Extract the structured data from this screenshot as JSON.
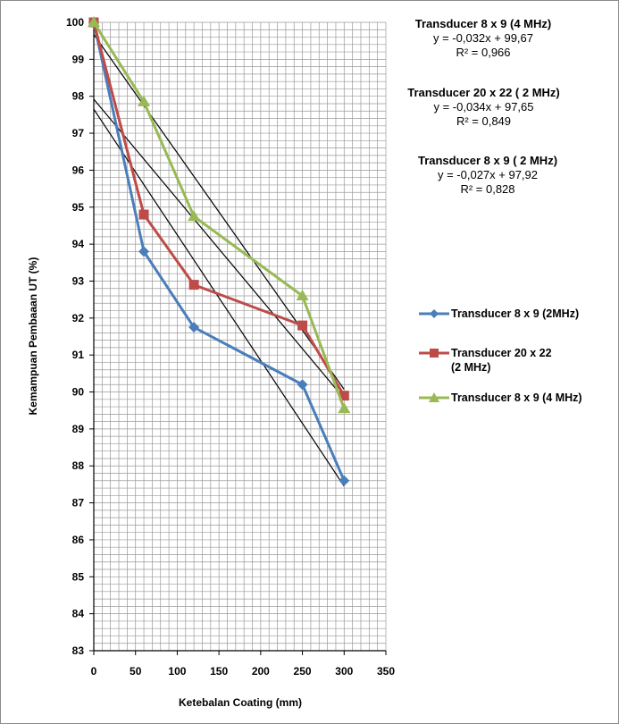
{
  "chart_data": {
    "type": "line",
    "title": "",
    "xlabel": "Ketebalan Coating (mm)",
    "ylabel": "Kemampuan Pembaaan UT (%)",
    "xlim": [
      0,
      350
    ],
    "ylim": [
      83,
      100
    ],
    "x_ticks": [
      "0",
      "50",
      "100",
      "150",
      "200",
      "250",
      "300",
      "350"
    ],
    "y_ticks": [
      "83",
      "84",
      "85",
      "86",
      "87",
      "88",
      "89",
      "90",
      "91",
      "92",
      "93",
      "94",
      "95",
      "96",
      "97",
      "98",
      "99",
      "100"
    ],
    "x_minor_step": 10,
    "y_minor_step": 0.2,
    "grid": true,
    "legend_position": "right",
    "series": [
      {
        "name": "Transducer 8 x 9 (2MHz)",
        "color": "#4a7ebb",
        "marker": "diamond",
        "x": [
          0,
          60,
          120,
          250,
          300
        ],
        "y": [
          100,
          93.8,
          91.75,
          90.2,
          87.6
        ]
      },
      {
        "name": "Transducer 20 x 22 (2 MHz)",
        "color": "#be4b48",
        "marker": "square",
        "x": [
          0,
          60,
          120,
          250,
          300
        ],
        "y": [
          100,
          94.8,
          92.9,
          91.8,
          89.9
        ]
      },
      {
        "name": "Transducer 8 x 9 (4 MHz)",
        "color": "#98b954",
        "marker": "triangle",
        "x": [
          0,
          60,
          120,
          250,
          300
        ],
        "y": [
          100,
          97.85,
          94.75,
          92.6,
          89.55
        ]
      }
    ],
    "trendlines": [
      {
        "color": "#000000",
        "slope": -0.032,
        "intercept": 99.67,
        "x_range": [
          0,
          300
        ]
      },
      {
        "color": "#000000",
        "slope": -0.034,
        "intercept": 97.65,
        "x_range": [
          0,
          300
        ]
      },
      {
        "color": "#000000",
        "slope": -0.027,
        "intercept": 97.92,
        "x_range": [
          0,
          300
        ]
      }
    ],
    "equations": [
      {
        "title": "Transducer 8 x 9 (4 MHz)",
        "equation": "y = -0,032x + 99,67",
        "r2": "R² = 0,966"
      },
      {
        "title": "Transducer 20 x 22 ( 2 MHz)",
        "equation": "y = -0,034x + 97,65",
        "r2": "R² = 0,849"
      },
      {
        "title": "Transducer 8 x 9 ( 2 MHz)",
        "equation": "y = -0,027x + 97,92",
        "r2": "R² = 0,828"
      }
    ]
  },
  "legend": {
    "items": [
      {
        "label": "Transducer 8 x 9 (2MHz)",
        "color": "#4a7ebb",
        "marker": "diamond"
      },
      {
        "label": "Transducer 20 x 22 (2 MHz)",
        "color": "#be4b48",
        "marker": "square"
      },
      {
        "label": "Transducer 8 x 9 (4 MHz)",
        "color": "#98b954",
        "marker": "triangle"
      }
    ]
  }
}
